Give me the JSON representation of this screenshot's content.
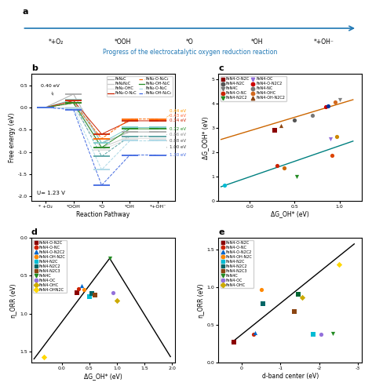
{
  "chart_data": [
    {
      "type": "scheme",
      "title": "a",
      "categories": [
        "*+O₂",
        "*OOH",
        "*O",
        "*OH",
        "*+OH⁻"
      ],
      "xlabel": "Progress of the electrocatalytic oxygen reduction reaction"
    },
    {
      "type": "energy_profile",
      "title": "b",
      "xlabel": "Reaction Pathway",
      "ylabel": "Free energy (eV)",
      "categories": [
        "* +O₂",
        "*OOH",
        "*O",
        "*OH",
        "*+OH⁻"
      ],
      "series": [
        {
          "color": "#aaaaaa",
          "line_style": "solid",
          "values": [
            0.0,
            0.3,
            -0.8,
            -0.55,
            -0.55
          ]
        },
        {
          "color": "#c8c8c8",
          "line_style": "solid",
          "values": [
            0.0,
            0.15,
            -0.9,
            -0.65,
            -0.65
          ]
        },
        {
          "color": "#e0e0e0",
          "line_style": "solid",
          "values": [
            0.0,
            0.0,
            -0.95,
            -0.7,
            -0.7
          ]
        },
        {
          "color": "#7ecfcf",
          "line_style": "solid",
          "values": [
            0.0,
            0.18,
            -0.8,
            -0.45,
            -0.45
          ]
        },
        {
          "color": "#5ba5a5",
          "line_style": "dashed",
          "values": [
            0.0,
            0.1,
            -1.1,
            -0.65,
            -0.65
          ]
        },
        {
          "color": "#cc2200",
          "line_style": "solid",
          "values": [
            0.0,
            0.15,
            -0.6,
            -0.3,
            -0.3
          ]
        },
        {
          "color": "#ff6600",
          "line_style": "dashed",
          "values": [
            0.0,
            0.1,
            -0.7,
            -0.26,
            -0.26
          ]
        },
        {
          "color": "#228B22",
          "line_style": "solid",
          "values": [
            0.0,
            0.1,
            -0.9,
            -0.48,
            -0.48
          ]
        },
        {
          "color": "#add8e6",
          "line_style": "dashed",
          "values": [
            0.0,
            -0.02,
            -1.4,
            -0.75,
            -0.75
          ]
        },
        {
          "color": "#4169E1",
          "line_style": "dashed",
          "values": [
            0.0,
            -0.05,
            -1.75,
            -1.07,
            -1.07
          ]
        }
      ],
      "ylim": [
        -2.1,
        0.75
      ],
      "yticks": [
        -2.0,
        -1.5,
        -1.0,
        -0.5,
        0.0,
        0.5
      ],
      "legend": "upper right",
      "legend_entries": [
        {
          "name": "FeN₄C",
          "color": "#aaaaaa",
          "line_style": "solid"
        },
        {
          "name": "FeN₄N₂C",
          "color": "#c8c8c8",
          "line_style": "solid"
        },
        {
          "name": "FeN₄-OHC",
          "color": "#e0e0e0",
          "line_style": "solid"
        },
        {
          "name": "FeN₄-O-N₂C",
          "color": "#cc2200",
          "line_style": "solid"
        },
        {
          "name": "FeN₄-O-N₂C₂",
          "color": "#ff6600",
          "line_style": "dashed"
        },
        {
          "name": "FeN₄-OH-N₂C",
          "color": "#228B22",
          "line_style": "solid"
        },
        {
          "name": "FeN₄-O-N₂C",
          "color": "#add8e6",
          "line_style": "dashed"
        },
        {
          "name": "FeN₄-OH-N₂C₂",
          "color": "#4169E1",
          "line_style": "dashed"
        }
      ],
      "annotations": [
        {
          "text": "0.40 eV",
          "x": 0.3,
          "y": 0.22
        },
        {
          "text": "U= 1.23 V"
        },
        {
          "text": "0.34 eV",
          "color": "#cc2200",
          "y": -0.3
        },
        {
          "text": "0.43 eV",
          "color": "#ff6633",
          "y": -0.26
        },
        {
          "text": "0.44 eV",
          "color": "#ff9900",
          "y": -0.22
        },
        {
          "text": "0.72 eV",
          "color": "#228B22",
          "y": -0.48
        },
        {
          "text": "0.86 eV",
          "color": "#888888",
          "y": -0.61
        },
        {
          "text": "0.88 eV",
          "color": "#555555",
          "y": -0.75
        },
        {
          "text": "1.00 eV",
          "color": "#333333",
          "y": -0.9
        },
        {
          "text": "1.30 eV",
          "color": "#4169E1",
          "y": -1.07
        }
      ]
    },
    {
      "type": "scatter",
      "title": "c",
      "xlabel": "ΔG_OH* (eV)",
      "ylabel": "ΔG_OOH* (eV)",
      "series": [
        {
          "type": "line",
          "color": "#cc6600",
          "x": [
            -0.32,
            1.15
          ],
          "values": [
            2.52,
            4.15
          ]
        },
        {
          "type": "line",
          "color": "#008080",
          "x": [
            -0.32,
            1.15
          ],
          "values": [
            0.58,
            2.45
          ]
        },
        {
          "type": "scatter",
          "color": "#00bcd4",
          "marker": "circle",
          "x": [
            -0.28
          ],
          "values": [
            0.65
          ]
        },
        {
          "type": "scatter",
          "color": "#8B0000",
          "marker": "square",
          "x": [
            0.28
          ],
          "values": [
            2.88
          ]
        },
        {
          "type": "scatter",
          "color": "#cc2200",
          "marker": "circle",
          "x": [
            0.3
          ],
          "values": [
            1.45
          ]
        },
        {
          "type": "scatter",
          "color": "#8B4513",
          "marker": "triangle_up",
          "x": [
            0.35
          ],
          "values": [
            3.1
          ]
        },
        {
          "type": "scatter",
          "color": "#cc6600",
          "marker": "circle",
          "x": [
            0.38
          ],
          "values": [
            1.35
          ]
        },
        {
          "type": "scatter",
          "color": "#555555",
          "marker": "circle",
          "x": [
            0.5
          ],
          "values": [
            3.3
          ]
        },
        {
          "type": "scatter",
          "color": "#228B22",
          "marker": "triangle_down",
          "x": [
            0.52
          ],
          "values": [
            1.0
          ]
        },
        {
          "type": "scatter",
          "color": "#777777",
          "marker": "circle",
          "x": [
            0.7
          ],
          "values": [
            3.5
          ]
        },
        {
          "type": "scatter",
          "color": "#cc0000",
          "marker": "circle",
          "x": [
            0.85
          ],
          "values": [
            3.85
          ]
        },
        {
          "type": "scatter",
          "color": "#003399",
          "marker": "circle",
          "x": [
            0.87
          ],
          "values": [
            3.9
          ]
        },
        {
          "type": "scatter",
          "color": "#9370DB",
          "marker": "triangle_down",
          "x": [
            0.9
          ],
          "values": [
            2.55
          ]
        },
        {
          "type": "scatter",
          "color": "#dd4400",
          "marker": "circle",
          "x": [
            0.92
          ],
          "values": [
            1.85
          ]
        },
        {
          "type": "scatter",
          "color": "#d2691e",
          "marker": "circle",
          "x": [
            0.95
          ],
          "values": [
            4.05
          ]
        },
        {
          "type": "scatter",
          "color": "#cc8800",
          "marker": "circle",
          "x": [
            0.97
          ],
          "values": [
            2.65
          ]
        },
        {
          "type": "scatter",
          "color": "#808080",
          "marker": "triangle_down",
          "x": [
            1.0
          ],
          "values": [
            4.15
          ]
        }
      ],
      "xlim": [
        -0.35,
        1.25
      ],
      "xticks": [
        0.0,
        0.5,
        1.0
      ],
      "ylim": [
        0,
        5.2
      ],
      "yticks": [
        0,
        1,
        2,
        3,
        4,
        5
      ],
      "legend": "upper left",
      "legend_entries": [
        {
          "name": "FeN4-O-N2C",
          "color": "#8B0000",
          "marker": "square"
        },
        {
          "name": "FeN4-N2C",
          "color": "#555555",
          "marker": "circle"
        },
        {
          "name": "FeN4C",
          "color": "#777777",
          "marker": "triangle_down"
        },
        {
          "name": "FeN4-O-NC",
          "color": "#cc2200",
          "marker": "circle"
        },
        {
          "name": "FeN4-N2C2",
          "color": "#228B22",
          "marker": "triangle_down"
        },
        {
          "name": "FeN4-OC",
          "color": "#9370DB",
          "marker": "triangle_down"
        },
        {
          "name": "FeN4-O-N2C2",
          "color": "#cc0000",
          "marker": "circle"
        },
        {
          "name": "FeN4-NC",
          "color": "#777777",
          "marker": "circle"
        },
        {
          "name": "FeN4-OHC",
          "color": "#d2691e",
          "marker": "circle"
        },
        {
          "name": "FeN4-OH-N2C2",
          "color": "#8B4513",
          "marker": "triangle_up"
        }
      ]
    },
    {
      "type": "scatter",
      "title": "d",
      "xlabel": "ΔG_OH* (eV)",
      "ylabel": "η_ORR (eV)",
      "series": [
        {
          "type": "line",
          "color": "black",
          "x": [
            -0.5,
            0.87,
            1.97
          ],
          "values": [
            1.6,
            0.27,
            1.57
          ]
        },
        {
          "type": "scatter",
          "color": "#FFD700",
          "marker": "diamond",
          "x": [
            -0.32
          ],
          "values": [
            1.58
          ]
        },
        {
          "type": "scatter",
          "color": "#8B0000",
          "marker": "square",
          "x": [
            0.28
          ],
          "values": [
            0.72
          ]
        },
        {
          "type": "scatter",
          "color": "#cc2200",
          "marker": "circle",
          "x": [
            0.3
          ],
          "values": [
            0.67
          ]
        },
        {
          "type": "scatter",
          "color": "#0066cc",
          "marker": "triangle_up",
          "x": [
            0.36
          ],
          "values": [
            0.63
          ]
        },
        {
          "type": "scatter",
          "color": "#ff8800",
          "marker": "circle",
          "x": [
            0.4
          ],
          "values": [
            0.68
          ]
        },
        {
          "type": "scatter",
          "color": "#00bcd4",
          "marker": "square",
          "x": [
            0.5
          ],
          "values": [
            0.78
          ]
        },
        {
          "type": "scatter",
          "color": "#006666",
          "marker": "square",
          "x": [
            0.55
          ],
          "values": [
            0.73
          ]
        },
        {
          "type": "scatter",
          "color": "#8B4513",
          "marker": "square",
          "x": [
            0.6
          ],
          "values": [
            0.76
          ]
        },
        {
          "type": "scatter",
          "color": "#228B22",
          "marker": "triangle_down",
          "x": [
            0.87
          ],
          "values": [
            0.27
          ]
        },
        {
          "type": "scatter",
          "color": "#9370DB",
          "marker": "circle",
          "x": [
            0.93
          ],
          "values": [
            0.72
          ]
        },
        {
          "type": "scatter",
          "color": "#ccaa00",
          "marker": "diamond",
          "x": [
            1.0
          ],
          "values": [
            0.83
          ]
        }
      ],
      "xlim": [
        -0.55,
        2.05
      ],
      "xticks": [
        0.0,
        0.5,
        1.0,
        1.5,
        2.0
      ],
      "ylim": [
        1.65,
        0.0
      ],
      "yticks": [
        0.0,
        0.5,
        1.0,
        1.5
      ],
      "legend": "upper left",
      "legend_entries": [
        {
          "name": "FeN4-O-N2C",
          "color": "#8B0000",
          "marker": "square"
        },
        {
          "name": "FeN4-O-NC",
          "color": "#cc2200",
          "marker": "circle"
        },
        {
          "name": "FeN4-O-N2C2",
          "color": "#0066cc",
          "marker": "triangle_up"
        },
        {
          "name": "FeN4-OH-N2C",
          "color": "#ff8800",
          "marker": "circle"
        },
        {
          "name": "FeN4-N2C",
          "color": "#00bcd4",
          "marker": "square"
        },
        {
          "name": "FeN4-N2C2",
          "color": "#006666",
          "marker": "square"
        },
        {
          "name": "FeN4-N2C3",
          "color": "#8B4513",
          "marker": "square"
        },
        {
          "name": "FeN4C",
          "color": "#228B22",
          "marker": "triangle_down"
        },
        {
          "name": "FeN4-OC",
          "color": "#9370DB",
          "marker": "circle"
        },
        {
          "name": "FeN4-OHC",
          "color": "#ccaa00",
          "marker": "diamond"
        },
        {
          "name": "FeN4-OHN2C",
          "color": "#FFD700",
          "marker": "diamond"
        }
      ]
    },
    {
      "type": "scatter",
      "title": "e",
      "xlabel": "d-band center (eV)",
      "ylabel": "η_ORR (eV)",
      "series": [
        {
          "type": "line",
          "color": "black",
          "x": [
            0.25,
            -2.9
          ],
          "values": [
            0.27,
            1.57
          ]
        },
        {
          "type": "scatter",
          "color": "#8B0000",
          "marker": "square",
          "x": [
            0.2
          ],
          "values": [
            0.27
          ]
        },
        {
          "type": "scatter",
          "color": "#cc2200",
          "marker": "circle",
          "x": [
            -0.3
          ],
          "values": [
            0.38
          ]
        },
        {
          "type": "scatter",
          "color": "#0066cc",
          "marker": "triangle_up",
          "x": [
            -0.35
          ],
          "values": [
            0.4
          ]
        },
        {
          "type": "scatter",
          "color": "#ff8800",
          "marker": "circle",
          "x": [
            -0.5
          ],
          "values": [
            0.97
          ]
        },
        {
          "type": "scatter",
          "color": "#006666",
          "marker": "square",
          "x": [
            -0.55
          ],
          "values": [
            0.78
          ]
        },
        {
          "type": "scatter",
          "color": "#8B4513",
          "marker": "square",
          "x": [
            -1.35
          ],
          "values": [
            0.68
          ]
        },
        {
          "type": "scatter",
          "color": "#006633",
          "marker": "square",
          "x": [
            -1.45
          ],
          "values": [
            0.9
          ]
        },
        {
          "type": "scatter",
          "color": "#ccaa00",
          "marker": "diamond",
          "x": [
            -1.55
          ],
          "values": [
            0.86
          ]
        },
        {
          "type": "scatter",
          "color": "#00bcd4",
          "marker": "square",
          "x": [
            -1.85
          ],
          "values": [
            0.38
          ]
        },
        {
          "type": "scatter",
          "color": "#9370DB",
          "marker": "circle",
          "x": [
            -2.05
          ],
          "values": [
            0.38
          ]
        },
        {
          "type": "scatter",
          "color": "#228B22",
          "marker": "triangle_down",
          "x": [
            -2.35
          ],
          "values": [
            0.39
          ]
        },
        {
          "type": "scatter",
          "color": "#FFD700",
          "marker": "diamond",
          "x": [
            -2.5
          ],
          "values": [
            1.3
          ]
        }
      ],
      "xlim": [
        0.6,
        -3.1
      ],
      "xticks": [
        0,
        -1,
        -2,
        -3
      ],
      "ylim": [
        0.0,
        1.65
      ],
      "yticks": [
        0.0,
        0.5,
        1.0,
        1.5
      ],
      "legend": "upper left",
      "legend_entries": [
        {
          "name": "FeN4-O-N2C",
          "color": "#8B0000",
          "marker": "square"
        },
        {
          "name": "FeN4-O-NC",
          "color": "#cc2200",
          "marker": "circle"
        },
        {
          "name": "FeN4-O-N2C2",
          "color": "#0066cc",
          "marker": "triangle_up"
        },
        {
          "name": "FeN4-OH-N2C",
          "color": "#ff8800",
          "marker": "circle"
        },
        {
          "name": "FeN4-N2C",
          "color": "#00bcd4",
          "marker": "square"
        },
        {
          "name": "FeN4-N2C2",
          "color": "#006666",
          "marker": "square"
        },
        {
          "name": "FeN4-N2C3",
          "color": "#8B4513",
          "marker": "square"
        },
        {
          "name": "FeN4C",
          "color": "#228B22",
          "marker": "triangle_down"
        },
        {
          "name": "FeN4-OC",
          "color": "#9370DB",
          "marker": "circle"
        },
        {
          "name": "FeN4-OHC",
          "color": "#ccaa00",
          "marker": "diamond"
        }
      ]
    }
  ]
}
